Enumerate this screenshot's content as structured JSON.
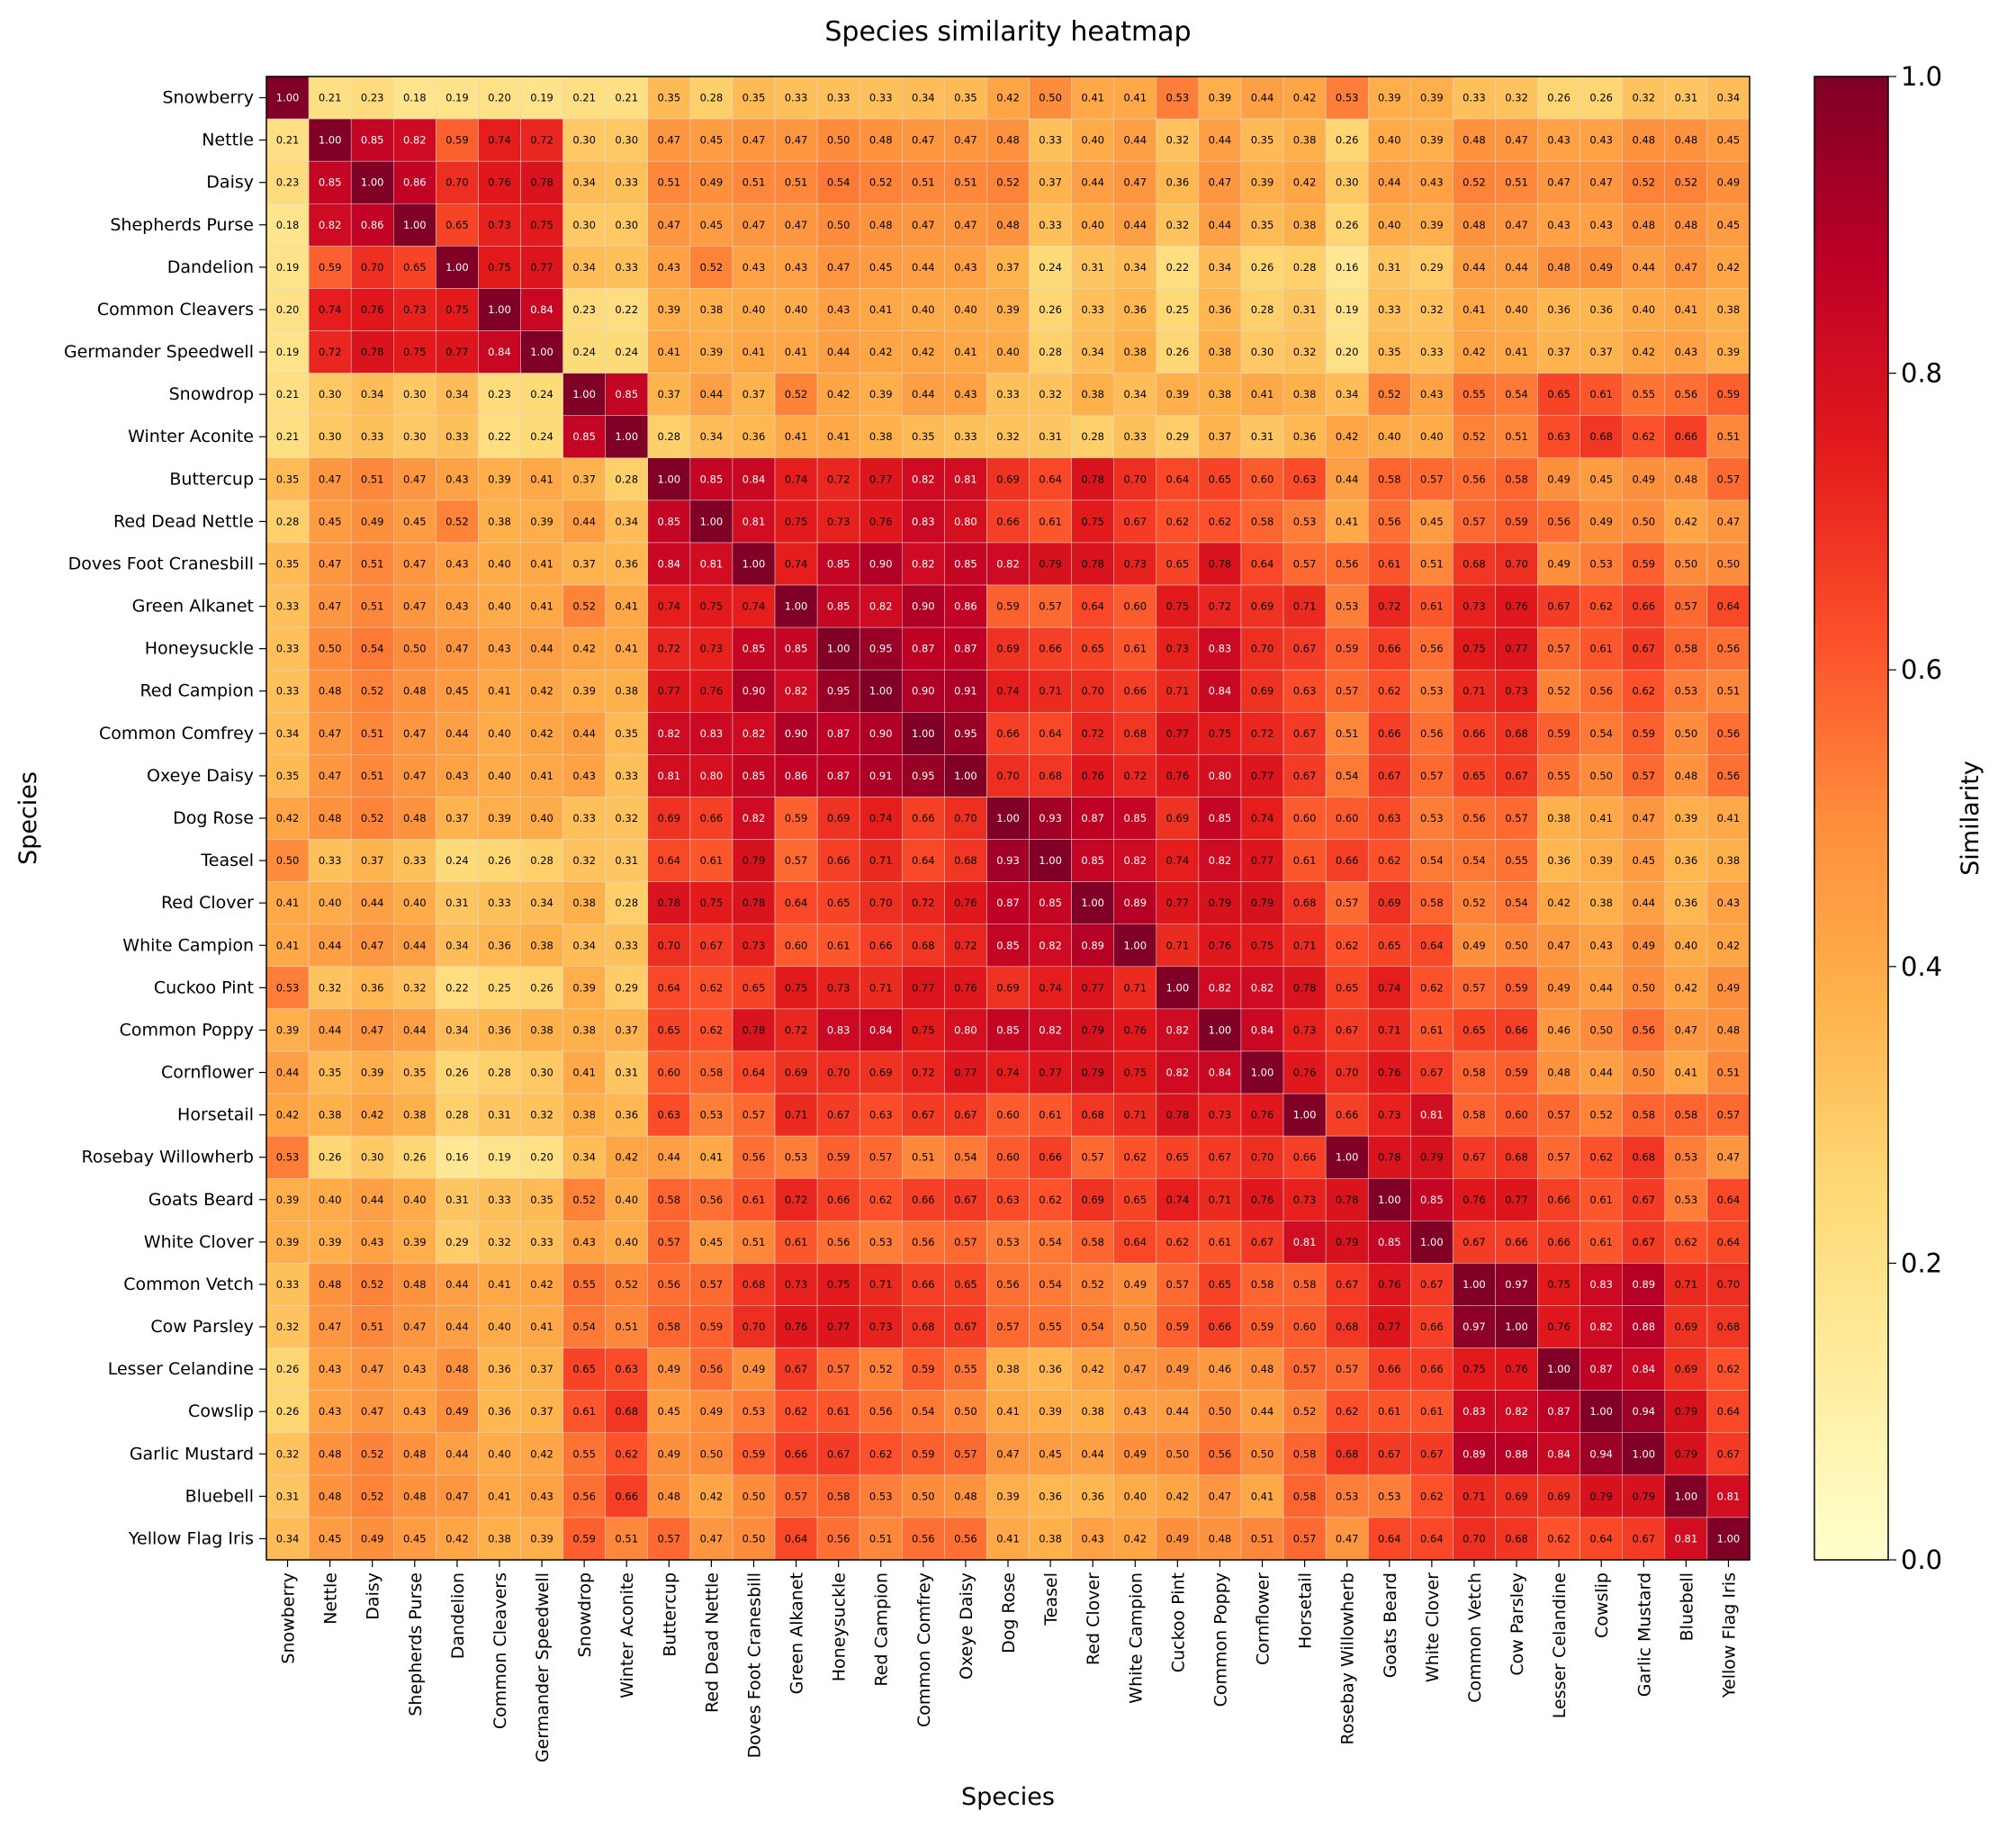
{
  "chart_data": {
    "type": "heatmap",
    "title": "Species similarity heatmap",
    "xlabel": "Species",
    "ylabel": "Species",
    "colorbar_label": "Similarity",
    "colorbar_ticks": [
      "0.0",
      "0.2",
      "0.4",
      "0.6",
      "0.8",
      "1.0"
    ],
    "vmin": 0,
    "vmax": 1,
    "colormap_stops": [
      "#ffffcc",
      "#ffeda0",
      "#fed976",
      "#feb24c",
      "#fd8d3c",
      "#fc4e2a",
      "#e31a1c",
      "#bd0026",
      "#800026"
    ],
    "grid": true,
    "species": [
      "Snowberry",
      "Nettle",
      "Daisy",
      "Shepherds Purse",
      "Dandelion",
      "Common Cleavers",
      "Germander Speedwell",
      "Snowdrop",
      "Winter Aconite",
      "Buttercup",
      "Red Dead Nettle",
      "Doves Foot Cranesbill",
      "Green Alkanet",
      "Honeysuckle",
      "Red Campion",
      "Common Comfrey",
      "Oxeye Daisy",
      "Dog Rose",
      "Teasel",
      "Red Clover",
      "White Campion",
      "Cuckoo Pint",
      "Common Poppy",
      "Cornflower",
      "Horsetail",
      "Rosebay Willowherb",
      "Goats Beard",
      "White Clover",
      "Common Vetch",
      "Cow Parsley",
      "Lesser Celandine",
      "Cowslip",
      "Garlic Mustard",
      "Bluebell",
      "Yellow Flag Iris"
    ],
    "matrix": [
      [
        1.0,
        0.21,
        0.23,
        0.18,
        0.19,
        0.2,
        0.19,
        0.21,
        0.21,
        0.35,
        0.28,
        0.35,
        0.33,
        0.33,
        0.33,
        0.34,
        0.35,
        0.42,
        0.5,
        0.41,
        0.41,
        0.53,
        0.39,
        0.44,
        0.42,
        0.53,
        0.39,
        0.39,
        0.33,
        0.32,
        0.26,
        0.26,
        0.32,
        0.31,
        0.34
      ],
      [
        0.21,
        1.0,
        0.85,
        0.82,
        0.59,
        0.74,
        0.72,
        0.3,
        0.3,
        0.47,
        0.45,
        0.47,
        0.47,
        0.5,
        0.48,
        0.47,
        0.47,
        0.48,
        0.33,
        0.4,
        0.44,
        0.32,
        0.44,
        0.35,
        0.38,
        0.26,
        0.4,
        0.39,
        0.48,
        0.47,
        0.43,
        0.43,
        0.48,
        0.48,
        0.45
      ],
      [
        0.23,
        0.85,
        1.0,
        0.86,
        0.7,
        0.76,
        0.78,
        0.34,
        0.33,
        0.51,
        0.49,
        0.51,
        0.51,
        0.54,
        0.52,
        0.51,
        0.51,
        0.52,
        0.37,
        0.44,
        0.47,
        0.36,
        0.47,
        0.39,
        0.42,
        0.3,
        0.44,
        0.43,
        0.52,
        0.51,
        0.47,
        0.47,
        0.52,
        0.52,
        0.49
      ],
      [
        0.18,
        0.82,
        0.86,
        1.0,
        0.65,
        0.73,
        0.75,
        0.3,
        0.3,
        0.47,
        0.45,
        0.47,
        0.47,
        0.5,
        0.48,
        0.47,
        0.47,
        0.48,
        0.33,
        0.4,
        0.44,
        0.32,
        0.44,
        0.35,
        0.38,
        0.26,
        0.4,
        0.39,
        0.48,
        0.47,
        0.43,
        0.43,
        0.48,
        0.48,
        0.45
      ],
      [
        0.19,
        0.59,
        0.7,
        0.65,
        1.0,
        0.75,
        0.77,
        0.34,
        0.33,
        0.43,
        0.52,
        0.43,
        0.43,
        0.47,
        0.45,
        0.44,
        0.43,
        0.37,
        0.24,
        0.31,
        0.34,
        0.22,
        0.34,
        0.26,
        0.28,
        0.16,
        0.31,
        0.29,
        0.44,
        0.44,
        0.48,
        0.49,
        0.44,
        0.47,
        0.42
      ],
      [
        0.2,
        0.74,
        0.76,
        0.73,
        0.75,
        1.0,
        0.84,
        0.23,
        0.22,
        0.39,
        0.38,
        0.4,
        0.4,
        0.43,
        0.41,
        0.4,
        0.4,
        0.39,
        0.26,
        0.33,
        0.36,
        0.25,
        0.36,
        0.28,
        0.31,
        0.19,
        0.33,
        0.32,
        0.41,
        0.4,
        0.36,
        0.36,
        0.4,
        0.41,
        0.38
      ],
      [
        0.19,
        0.72,
        0.78,
        0.75,
        0.77,
        0.84,
        1.0,
        0.24,
        0.24,
        0.41,
        0.39,
        0.41,
        0.41,
        0.44,
        0.42,
        0.42,
        0.41,
        0.4,
        0.28,
        0.34,
        0.38,
        0.26,
        0.38,
        0.3,
        0.32,
        0.2,
        0.35,
        0.33,
        0.42,
        0.41,
        0.37,
        0.37,
        0.42,
        0.43,
        0.39
      ],
      [
        0.21,
        0.3,
        0.34,
        0.3,
        0.34,
        0.23,
        0.24,
        1.0,
        0.85,
        0.37,
        0.44,
        0.37,
        0.52,
        0.42,
        0.39,
        0.44,
        0.43,
        0.33,
        0.32,
        0.38,
        0.34,
        0.39,
        0.38,
        0.41,
        0.38,
        0.34,
        0.52,
        0.43,
        0.55,
        0.54,
        0.65,
        0.61,
        0.55,
        0.56,
        0.59
      ],
      [
        0.21,
        0.3,
        0.33,
        0.3,
        0.33,
        0.22,
        0.24,
        0.85,
        1.0,
        0.28,
        0.34,
        0.36,
        0.41,
        0.41,
        0.38,
        0.35,
        0.33,
        0.32,
        0.31,
        0.28,
        0.33,
        0.29,
        0.37,
        0.31,
        0.36,
        0.42,
        0.4,
        0.4,
        0.52,
        0.51,
        0.63,
        0.68,
        0.62,
        0.66,
        0.51
      ],
      [
        0.35,
        0.47,
        0.51,
        0.47,
        0.43,
        0.39,
        0.41,
        0.37,
        0.28,
        1.0,
        0.85,
        0.84,
        0.74,
        0.72,
        0.77,
        0.82,
        0.81,
        0.69,
        0.64,
        0.78,
        0.7,
        0.64,
        0.65,
        0.6,
        0.63,
        0.44,
        0.58,
        0.57,
        0.56,
        0.58,
        0.49,
        0.45,
        0.49,
        0.48,
        0.57
      ],
      [
        0.28,
        0.45,
        0.49,
        0.45,
        0.52,
        0.38,
        0.39,
        0.44,
        0.34,
        0.85,
        1.0,
        0.81,
        0.75,
        0.73,
        0.76,
        0.83,
        0.8,
        0.66,
        0.61,
        0.75,
        0.67,
        0.62,
        0.62,
        0.58,
        0.53,
        0.41,
        0.56,
        0.45,
        0.57,
        0.59,
        0.56,
        0.49,
        0.5,
        0.42,
        0.47
      ],
      [
        0.35,
        0.47,
        0.51,
        0.47,
        0.43,
        0.4,
        0.41,
        0.37,
        0.36,
        0.84,
        0.81,
        1.0,
        0.74,
        0.85,
        0.9,
        0.82,
        0.85,
        0.82,
        0.79,
        0.78,
        0.73,
        0.65,
        0.78,
        0.64,
        0.57,
        0.56,
        0.61,
        0.51,
        0.68,
        0.7,
        0.49,
        0.53,
        0.59,
        0.5,
        0.5
      ],
      [
        0.33,
        0.47,
        0.51,
        0.47,
        0.43,
        0.4,
        0.41,
        0.52,
        0.41,
        0.74,
        0.75,
        0.74,
        1.0,
        0.85,
        0.82,
        0.9,
        0.86,
        0.59,
        0.57,
        0.64,
        0.6,
        0.75,
        0.72,
        0.69,
        0.71,
        0.53,
        0.72,
        0.61,
        0.73,
        0.76,
        0.67,
        0.62,
        0.66,
        0.57,
        0.64
      ],
      [
        0.33,
        0.5,
        0.54,
        0.5,
        0.47,
        0.43,
        0.44,
        0.42,
        0.41,
        0.72,
        0.73,
        0.85,
        0.85,
        1.0,
        0.95,
        0.87,
        0.87,
        0.69,
        0.66,
        0.65,
        0.61,
        0.73,
        0.83,
        0.7,
        0.67,
        0.59,
        0.66,
        0.56,
        0.75,
        0.77,
        0.57,
        0.61,
        0.67,
        0.58,
        0.56
      ],
      [
        0.33,
        0.48,
        0.52,
        0.48,
        0.45,
        0.41,
        0.42,
        0.39,
        0.38,
        0.77,
        0.76,
        0.9,
        0.82,
        0.95,
        1.0,
        0.9,
        0.91,
        0.74,
        0.71,
        0.7,
        0.66,
        0.71,
        0.84,
        0.69,
        0.63,
        0.57,
        0.62,
        0.53,
        0.71,
        0.73,
        0.52,
        0.56,
        0.62,
        0.53,
        0.51
      ],
      [
        0.34,
        0.47,
        0.51,
        0.47,
        0.44,
        0.4,
        0.42,
        0.44,
        0.35,
        0.82,
        0.83,
        0.82,
        0.9,
        0.87,
        0.9,
        1.0,
        0.95,
        0.66,
        0.64,
        0.72,
        0.68,
        0.77,
        0.75,
        0.72,
        0.67,
        0.51,
        0.66,
        0.56,
        0.66,
        0.68,
        0.59,
        0.54,
        0.59,
        0.5,
        0.56
      ],
      [
        0.35,
        0.47,
        0.51,
        0.47,
        0.43,
        0.4,
        0.41,
        0.43,
        0.33,
        0.81,
        0.8,
        0.85,
        0.86,
        0.87,
        0.91,
        0.95,
        1.0,
        0.7,
        0.68,
        0.76,
        0.72,
        0.76,
        0.8,
        0.77,
        0.67,
        0.54,
        0.67,
        0.57,
        0.65,
        0.67,
        0.55,
        0.5,
        0.57,
        0.48,
        0.56
      ],
      [
        0.42,
        0.48,
        0.52,
        0.48,
        0.37,
        0.39,
        0.4,
        0.33,
        0.32,
        0.69,
        0.66,
        0.82,
        0.59,
        0.69,
        0.74,
        0.66,
        0.7,
        1.0,
        0.93,
        0.87,
        0.85,
        0.69,
        0.85,
        0.74,
        0.6,
        0.6,
        0.63,
        0.53,
        0.56,
        0.57,
        0.38,
        0.41,
        0.47,
        0.39,
        0.41
      ],
      [
        0.5,
        0.33,
        0.37,
        0.33,
        0.24,
        0.26,
        0.28,
        0.32,
        0.31,
        0.64,
        0.61,
        0.79,
        0.57,
        0.66,
        0.71,
        0.64,
        0.68,
        0.93,
        1.0,
        0.85,
        0.82,
        0.74,
        0.82,
        0.77,
        0.61,
        0.66,
        0.62,
        0.54,
        0.54,
        0.55,
        0.36,
        0.39,
        0.45,
        0.36,
        0.38
      ],
      [
        0.41,
        0.4,
        0.44,
        0.4,
        0.31,
        0.33,
        0.34,
        0.38,
        0.28,
        0.78,
        0.75,
        0.78,
        0.64,
        0.65,
        0.7,
        0.72,
        0.76,
        0.87,
        0.85,
        1.0,
        0.89,
        0.77,
        0.79,
        0.79,
        0.68,
        0.57,
        0.69,
        0.58,
        0.52,
        0.54,
        0.42,
        0.38,
        0.44,
        0.36,
        0.43
      ],
      [
        0.41,
        0.44,
        0.47,
        0.44,
        0.34,
        0.36,
        0.38,
        0.34,
        0.33,
        0.7,
        0.67,
        0.73,
        0.6,
        0.61,
        0.66,
        0.68,
        0.72,
        0.85,
        0.82,
        0.89,
        1.0,
        0.71,
        0.76,
        0.75,
        0.71,
        0.62,
        0.65,
        0.64,
        0.49,
        0.5,
        0.47,
        0.43,
        0.49,
        0.4,
        0.42
      ],
      [
        0.53,
        0.32,
        0.36,
        0.32,
        0.22,
        0.25,
        0.26,
        0.39,
        0.29,
        0.64,
        0.62,
        0.65,
        0.75,
        0.73,
        0.71,
        0.77,
        0.76,
        0.69,
        0.74,
        0.77,
        0.71,
        1.0,
        0.82,
        0.82,
        0.78,
        0.65,
        0.74,
        0.62,
        0.57,
        0.59,
        0.49,
        0.44,
        0.5,
        0.42,
        0.49
      ],
      [
        0.39,
        0.44,
        0.47,
        0.44,
        0.34,
        0.36,
        0.38,
        0.38,
        0.37,
        0.65,
        0.62,
        0.78,
        0.72,
        0.83,
        0.84,
        0.75,
        0.8,
        0.85,
        0.82,
        0.79,
        0.76,
        0.82,
        1.0,
        0.84,
        0.73,
        0.67,
        0.71,
        0.61,
        0.65,
        0.66,
        0.46,
        0.5,
        0.56,
        0.47,
        0.48
      ],
      [
        0.44,
        0.35,
        0.39,
        0.35,
        0.26,
        0.28,
        0.3,
        0.41,
        0.31,
        0.6,
        0.58,
        0.64,
        0.69,
        0.7,
        0.69,
        0.72,
        0.77,
        0.74,
        0.77,
        0.79,
        0.75,
        0.82,
        0.84,
        1.0,
        0.76,
        0.7,
        0.76,
        0.67,
        0.58,
        0.59,
        0.48,
        0.44,
        0.5,
        0.41,
        0.51
      ],
      [
        0.42,
        0.38,
        0.42,
        0.38,
        0.28,
        0.31,
        0.32,
        0.38,
        0.36,
        0.63,
        0.53,
        0.57,
        0.71,
        0.67,
        0.63,
        0.67,
        0.67,
        0.6,
        0.61,
        0.68,
        0.71,
        0.78,
        0.73,
        0.76,
        1.0,
        0.66,
        0.73,
        0.81,
        0.58,
        0.6,
        0.57,
        0.52,
        0.58,
        0.58,
        0.57
      ],
      [
        0.53,
        0.26,
        0.3,
        0.26,
        0.16,
        0.19,
        0.2,
        0.34,
        0.42,
        0.44,
        0.41,
        0.56,
        0.53,
        0.59,
        0.57,
        0.51,
        0.54,
        0.6,
        0.66,
        0.57,
        0.62,
        0.65,
        0.67,
        0.7,
        0.66,
        1.0,
        0.78,
        0.79,
        0.67,
        0.68,
        0.57,
        0.62,
        0.68,
        0.53,
        0.47
      ],
      [
        0.39,
        0.4,
        0.44,
        0.4,
        0.31,
        0.33,
        0.35,
        0.52,
        0.4,
        0.58,
        0.56,
        0.61,
        0.72,
        0.66,
        0.62,
        0.66,
        0.67,
        0.63,
        0.62,
        0.69,
        0.65,
        0.74,
        0.71,
        0.76,
        0.73,
        0.78,
        1.0,
        0.85,
        0.76,
        0.77,
        0.66,
        0.61,
        0.67,
        0.53,
        0.64
      ],
      [
        0.39,
        0.39,
        0.43,
        0.39,
        0.29,
        0.32,
        0.33,
        0.43,
        0.4,
        0.57,
        0.45,
        0.51,
        0.61,
        0.56,
        0.53,
        0.56,
        0.57,
        0.53,
        0.54,
        0.58,
        0.64,
        0.62,
        0.61,
        0.67,
        0.81,
        0.79,
        0.85,
        1.0,
        0.67,
        0.66,
        0.66,
        0.61,
        0.67,
        0.62,
        0.64
      ],
      [
        0.33,
        0.48,
        0.52,
        0.48,
        0.44,
        0.41,
        0.42,
        0.55,
        0.52,
        0.56,
        0.57,
        0.68,
        0.73,
        0.75,
        0.71,
        0.66,
        0.65,
        0.56,
        0.54,
        0.52,
        0.49,
        0.57,
        0.65,
        0.58,
        0.58,
        0.67,
        0.76,
        0.67,
        1.0,
        0.97,
        0.75,
        0.83,
        0.89,
        0.71,
        0.7
      ],
      [
        0.32,
        0.47,
        0.51,
        0.47,
        0.44,
        0.4,
        0.41,
        0.54,
        0.51,
        0.58,
        0.59,
        0.7,
        0.76,
        0.77,
        0.73,
        0.68,
        0.67,
        0.57,
        0.55,
        0.54,
        0.5,
        0.59,
        0.66,
        0.59,
        0.6,
        0.68,
        0.77,
        0.66,
        0.97,
        1.0,
        0.76,
        0.82,
        0.88,
        0.69,
        0.68
      ],
      [
        0.26,
        0.43,
        0.47,
        0.43,
        0.48,
        0.36,
        0.37,
        0.65,
        0.63,
        0.49,
        0.56,
        0.49,
        0.67,
        0.57,
        0.52,
        0.59,
        0.55,
        0.38,
        0.36,
        0.42,
        0.47,
        0.49,
        0.46,
        0.48,
        0.57,
        0.57,
        0.66,
        0.66,
        0.75,
        0.76,
        1.0,
        0.87,
        0.84,
        0.69,
        0.62
      ],
      [
        0.26,
        0.43,
        0.47,
        0.43,
        0.49,
        0.36,
        0.37,
        0.61,
        0.68,
        0.45,
        0.49,
        0.53,
        0.62,
        0.61,
        0.56,
        0.54,
        0.5,
        0.41,
        0.39,
        0.38,
        0.43,
        0.44,
        0.5,
        0.44,
        0.52,
        0.62,
        0.61,
        0.61,
        0.83,
        0.82,
        0.87,
        1.0,
        0.94,
        0.79,
        0.64
      ],
      [
        0.32,
        0.48,
        0.52,
        0.48,
        0.44,
        0.4,
        0.42,
        0.55,
        0.62,
        0.49,
        0.5,
        0.59,
        0.66,
        0.67,
        0.62,
        0.59,
        0.57,
        0.47,
        0.45,
        0.44,
        0.49,
        0.5,
        0.56,
        0.5,
        0.58,
        0.68,
        0.67,
        0.67,
        0.89,
        0.88,
        0.84,
        0.94,
        1.0,
        0.79,
        0.67
      ],
      [
        0.31,
        0.48,
        0.52,
        0.48,
        0.47,
        0.41,
        0.43,
        0.56,
        0.66,
        0.48,
        0.42,
        0.5,
        0.57,
        0.58,
        0.53,
        0.5,
        0.48,
        0.39,
        0.36,
        0.36,
        0.4,
        0.42,
        0.47,
        0.41,
        0.58,
        0.53,
        0.53,
        0.62,
        0.71,
        0.69,
        0.69,
        0.79,
        0.79,
        1.0,
        0.81
      ],
      [
        0.34,
        0.45,
        0.49,
        0.45,
        0.42,
        0.38,
        0.39,
        0.59,
        0.51,
        0.57,
        0.47,
        0.5,
        0.64,
        0.56,
        0.51,
        0.56,
        0.56,
        0.41,
        0.38,
        0.43,
        0.42,
        0.49,
        0.48,
        0.51,
        0.57,
        0.47,
        0.64,
        0.64,
        0.7,
        0.68,
        0.62,
        0.64,
        0.67,
        0.81,
        1.0
      ]
    ]
  }
}
